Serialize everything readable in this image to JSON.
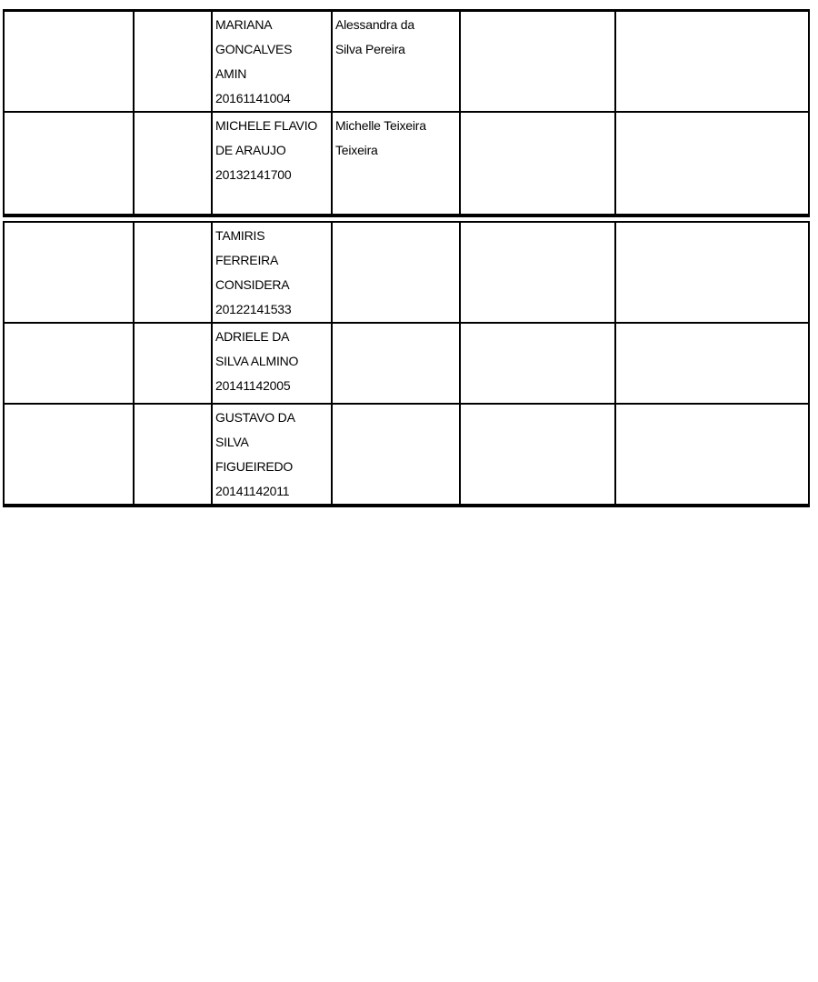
{
  "document": {
    "colors": {
      "background": "#ffffff",
      "border": "#000000",
      "text": "#000000"
    },
    "tables": [
      {
        "rows": [
          {
            "cells": [
              "",
              "",
              "MARIANA\nGONCALVES\nAMIN\n20161141004",
              "Alessandra da\nSilva Pereira",
              "",
              ""
            ]
          },
          {
            "cells": [
              "",
              "",
              "MICHELE FLAVIO\nDE ARAUJO\n20132141700",
              "Michelle Teixeira\nTeixeira",
              "",
              ""
            ]
          }
        ]
      },
      {
        "rows": [
          {
            "cells": [
              "",
              "",
              "TAMIRIS\nFERREIRA\nCONSIDERA\n20122141533",
              "",
              "",
              ""
            ]
          },
          {
            "cells": [
              "",
              "",
              "ADRIELE DA\nSILVA ALMINO\n20141142005",
              "",
              "",
              ""
            ]
          },
          {
            "cells": [
              "",
              "",
              "GUSTAVO DA\nSILVA\nFIGUEIREDO\n20141142011",
              "",
              "",
              ""
            ]
          }
        ]
      }
    ]
  }
}
